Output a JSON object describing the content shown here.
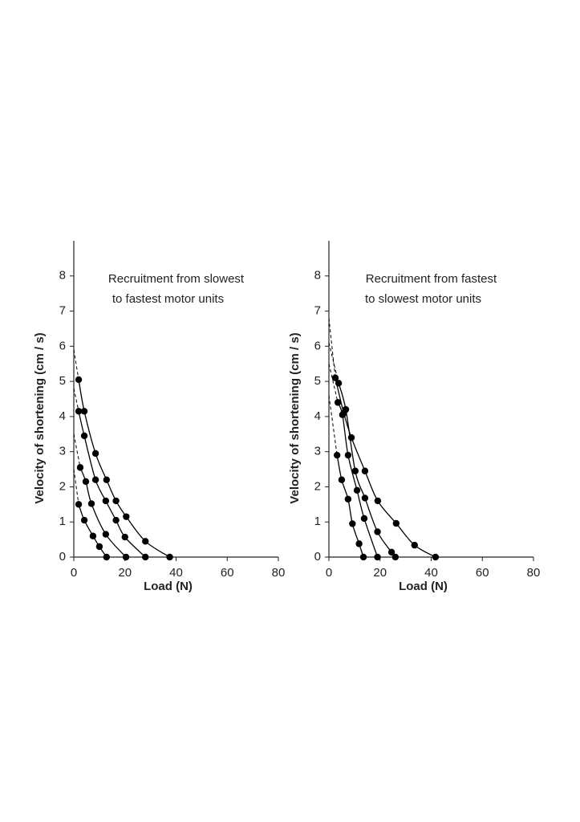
{
  "chart_data": [
    {
      "type": "line",
      "title": [
        "Recruitment from slowest",
        "to fastest motor units"
      ],
      "xlabel": "Load  (N)",
      "ylabel": "Velocity of shortening  (cm / s)",
      "color": "#000000",
      "xlim": [
        0,
        80
      ],
      "xticks": [
        0,
        20,
        40,
        60,
        80
      ],
      "ylim": [
        0,
        9
      ],
      "yticks": [
        0,
        1,
        2,
        3,
        4,
        5,
        6,
        7,
        8
      ],
      "series": [
        {
          "intercept": 2.5,
          "x": [
            1.9,
            4.1,
            7.5,
            10,
            12.8
          ],
          "values": [
            1.5,
            1.05,
            0.6,
            0.3,
            0
          ]
        },
        {
          "intercept": 3.5,
          "x": [
            2.5,
            4.7,
            6.9,
            12.5,
            20.4
          ],
          "values": [
            2.55,
            2.15,
            1.52,
            0.65,
            0
          ]
        },
        {
          "intercept": 4.8,
          "x": [
            1.9,
            4.1,
            8.5,
            12.5,
            16.5,
            20,
            28
          ],
          "values": [
            4.15,
            3.45,
            2.2,
            1.6,
            1.05,
            0.57,
            0
          ]
        },
        {
          "intercept": 5.9,
          "x": [
            1.9,
            4.1,
            8.5,
            12.8,
            16.5,
            20.5,
            28,
            37.5
          ],
          "values": [
            5.05,
            4.15,
            2.95,
            2.2,
            1.6,
            1.15,
            0.45,
            0
          ]
        }
      ]
    },
    {
      "type": "line",
      "title": [
        "Recruitment from fastest",
        "to slowest motor units"
      ],
      "xlabel": "Load  (N)",
      "ylabel": "Velocity of shortening  (cm / s)",
      "color": "#000000",
      "xlim": [
        0,
        80
      ],
      "xticks": [
        0,
        20,
        40,
        60,
        80
      ],
      "ylim": [
        0,
        9
      ],
      "yticks": [
        0,
        1,
        2,
        3,
        4,
        5,
        6,
        7,
        8
      ],
      "series": [
        {
          "intercept": 4.6,
          "x": [
            3.2,
            5,
            7.5,
            9.2,
            11.8,
            13.5
          ],
          "values": [
            2.9,
            2.2,
            1.65,
            0.95,
            0.38,
            0
          ]
        },
        {
          "intercept": 5.5,
          "x": [
            3.5,
            5.3,
            7.5,
            11,
            13.8,
            19
          ],
          "values": [
            4.4,
            4.05,
            2.9,
            1.9,
            1.1,
            0
          ]
        },
        {
          "intercept": 6.1,
          "x": [
            3.8,
            6.6,
            10.3,
            14.1,
            19,
            24.5,
            26
          ],
          "values": [
            4.95,
            4.2,
            2.45,
            1.68,
            0.72,
            0.14,
            0
          ]
        },
        {
          "intercept": 6.8,
          "x": [
            2.5,
            5.8,
            8.8,
            14.1,
            19.1,
            26.3,
            33.5,
            41.7
          ],
          "values": [
            5.1,
            4.1,
            3.4,
            2.45,
            1.6,
            0.96,
            0.34,
            0
          ]
        }
      ]
    }
  ]
}
